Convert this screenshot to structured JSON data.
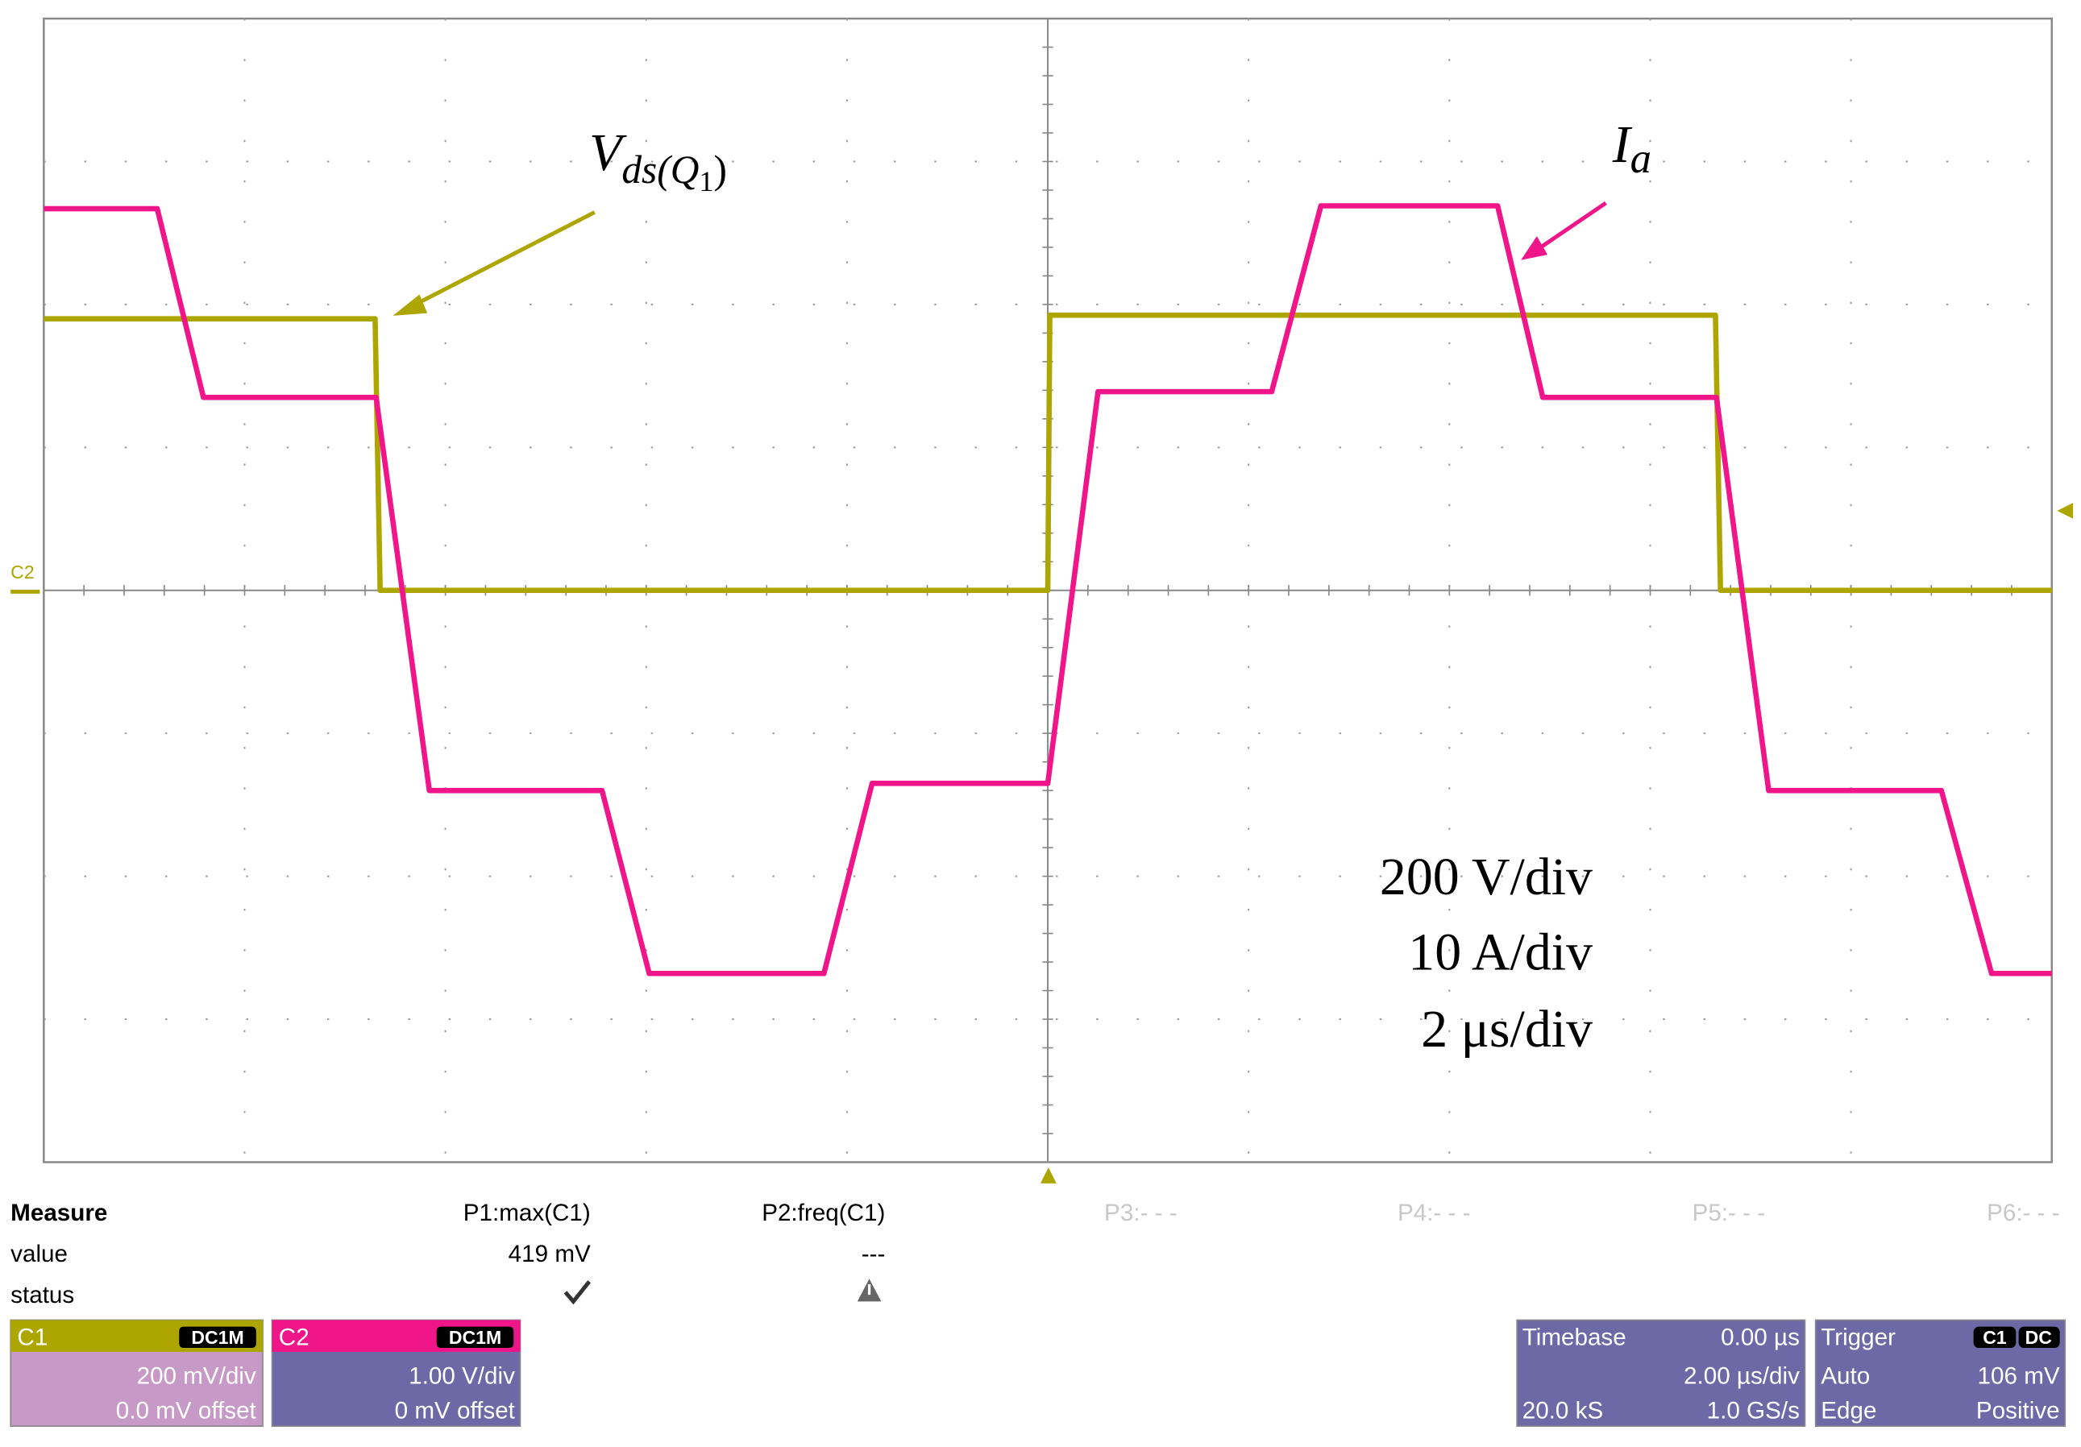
{
  "chart_data": {
    "type": "line",
    "xlim": [
      -10,
      10
    ],
    "ylim": [
      -800,
      800
    ],
    "y2lim": [
      -40,
      40
    ],
    "series": [
      {
        "name": "Vds",
        "color": "#aea600",
        "axis": "y",
        "x": [
          -10,
          -6.7,
          -6.65,
          0,
          0.02,
          6.65,
          6.7,
          10
        ],
        "values": [
          380,
          380,
          0,
          0,
          385,
          385,
          0,
          0
        ]
      },
      {
        "name": "Ia",
        "color": "#f0168a",
        "axis": "y2",
        "x": [
          -10,
          -8.87,
          -8.41,
          -6.69,
          -6.16,
          -4.44,
          -3.97,
          -2.23,
          -1.75,
          0,
          0.5,
          2.23,
          2.72,
          4.48,
          4.93,
          6.66,
          7.18,
          8.9,
          9.4,
          10
        ],
        "values": [
          26.7,
          26.7,
          13.5,
          13.5,
          -14,
          -14,
          -26.8,
          -26.8,
          -13.5,
          -13.5,
          13.9,
          13.9,
          26.9,
          26.9,
          13.5,
          13.5,
          -14,
          -14,
          -26.8,
          -26.8
        ]
      }
    ],
    "annotations": {
      "vds": {
        "base": "V",
        "sub": "ds(Q",
        "subsub": "1",
        "close": ")"
      },
      "ia": {
        "base": "I",
        "sub": "a"
      },
      "scale": [
        "200 V/div",
        "10 A/div",
        "2 μs/div"
      ],
      "c2_marker": "C2"
    },
    "measure": {
      "title": "Measure",
      "row_labels": [
        "value",
        "status"
      ],
      "params": [
        "P1:max(C1)",
        "P2:freq(C1)",
        "P3:- - -",
        "P4:- - -",
        "P5:- - -",
        "P6:- - -"
      ],
      "values": [
        "419 mV",
        "---"
      ]
    },
    "channels": [
      {
        "name": "C1",
        "coupling": "DC1M",
        "scale": "200 mV/div",
        "offset": "0.0 mV offset"
      },
      {
        "name": "C2",
        "coupling": "DC1M",
        "scale": "1.00 V/div",
        "offset": "0 mV offset"
      }
    ],
    "timebase": {
      "title": "Timebase",
      "delay": "0.00 µs",
      "scale": "2.00 µs/div",
      "samples": "20.0 kS",
      "rate": "1.0 GS/s"
    },
    "trigger": {
      "title": "Trigger",
      "source": "C1",
      "coupling": "DC",
      "mode": "Auto",
      "level": "106 mV",
      "type": "Edge",
      "slope": "Positive"
    }
  }
}
